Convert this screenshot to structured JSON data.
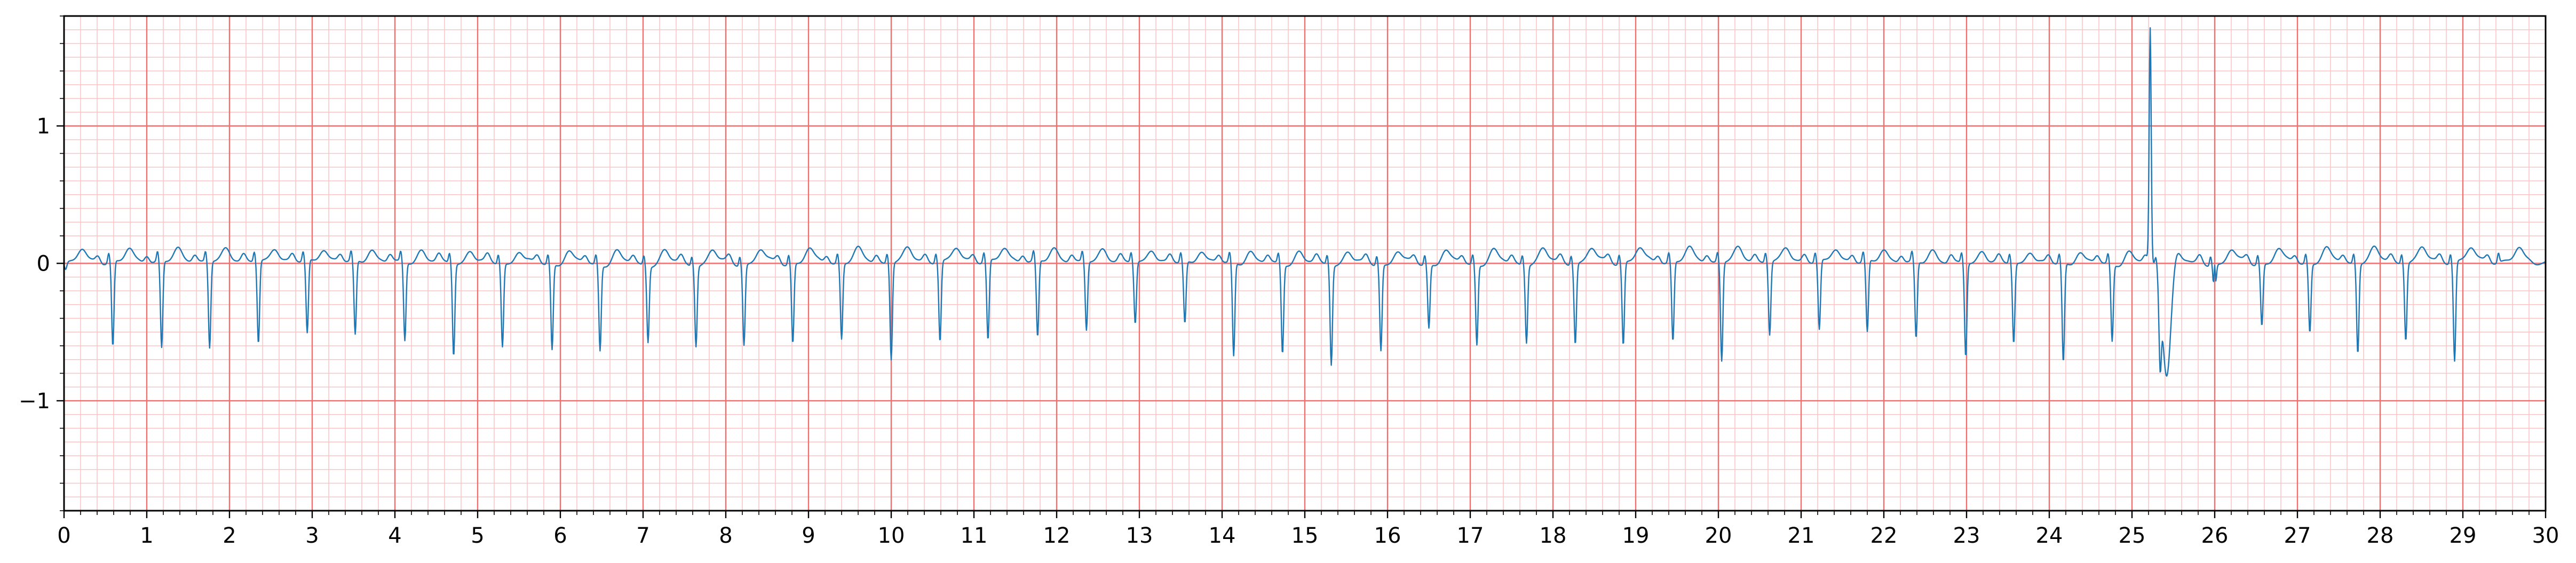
{
  "chart_data": {
    "type": "line",
    "title": "",
    "xlabel": "",
    "ylabel": "",
    "xlim": [
      0,
      30
    ],
    "ylim": [
      -1.8,
      1.8
    ],
    "x_ticks": [
      {
        "value": 0,
        "label": "0"
      },
      {
        "value": 1,
        "label": "1"
      },
      {
        "value": 2,
        "label": "2"
      },
      {
        "value": 3,
        "label": "3"
      },
      {
        "value": 4,
        "label": "4"
      },
      {
        "value": 5,
        "label": "5"
      },
      {
        "value": 6,
        "label": "6"
      },
      {
        "value": 7,
        "label": "7"
      },
      {
        "value": 8,
        "label": "8"
      },
      {
        "value": 9,
        "label": "9"
      },
      {
        "value": 10,
        "label": "10"
      },
      {
        "value": 11,
        "label": "11"
      },
      {
        "value": 12,
        "label": "12"
      },
      {
        "value": 13,
        "label": "13"
      },
      {
        "value": 14,
        "label": "14"
      },
      {
        "value": 15,
        "label": "15"
      },
      {
        "value": 16,
        "label": "16"
      },
      {
        "value": 17,
        "label": "17"
      },
      {
        "value": 18,
        "label": "18"
      },
      {
        "value": 19,
        "label": "19"
      },
      {
        "value": 20,
        "label": "20"
      },
      {
        "value": 21,
        "label": "21"
      },
      {
        "value": 22,
        "label": "22"
      },
      {
        "value": 23,
        "label": "23"
      },
      {
        "value": 24,
        "label": "24"
      },
      {
        "value": 25,
        "label": "25"
      },
      {
        "value": 26,
        "label": "26"
      },
      {
        "value": 27,
        "label": "27"
      },
      {
        "value": 28,
        "label": "28"
      },
      {
        "value": 29,
        "label": "29"
      },
      {
        "value": 30,
        "label": "30"
      }
    ],
    "y_ticks": [
      {
        "value": -1,
        "label": "−1"
      },
      {
        "value": 0,
        "label": "0"
      },
      {
        "value": 1,
        "label": "1"
      }
    ],
    "grid": {
      "major": true,
      "minor": true,
      "major_x_step": 1,
      "minor_x_step": 0.2,
      "major_y_step": 1,
      "minor_y_step": 0.1
    },
    "colors": {
      "line": "#1f77b4",
      "major_grid": "#f07070",
      "minor_grid": "#fbc4c4",
      "axes": "#000000"
    },
    "series": [
      {
        "values": [],
        "beats": {
          "times": [
            0.0,
            0.57,
            1.16,
            1.74,
            2.33,
            2.92,
            3.5,
            4.1,
            4.69,
            5.28,
            5.88,
            6.46,
            7.04,
            7.62,
            8.2,
            8.79,
            9.38,
            9.98,
            10.57,
            11.15,
            11.75,
            12.34,
            12.93,
            13.53,
            14.12,
            14.71,
            15.3,
            15.9,
            16.48,
            17.06,
            17.66,
            18.25,
            18.83,
            19.43,
            20.02,
            20.6,
            21.2,
            21.78,
            22.37,
            22.97,
            23.55,
            24.15,
            24.74,
            25.32,
            25.98,
            26.55,
            27.13,
            27.71,
            28.29,
            28.88,
            29.46
          ],
          "s_depth": [
            -0.05,
            -0.62,
            -0.63,
            -0.63,
            -0.6,
            -0.53,
            -0.54,
            -0.57,
            -0.67,
            -0.6,
            -0.62,
            -0.62,
            -0.55,
            -0.58,
            -0.58,
            -0.58,
            -0.55,
            -0.7,
            -0.58,
            -0.58,
            -0.56,
            -0.5,
            -0.45,
            -0.45,
            -0.68,
            -0.65,
            -0.72,
            -0.62,
            -0.46,
            -0.58,
            -0.56,
            -0.58,
            -0.6,
            -0.58,
            -0.72,
            -0.53,
            -0.5,
            -0.52,
            -0.56,
            -0.68,
            -0.58,
            -0.72,
            -0.56,
            -0.55,
            -0.3,
            -0.45,
            -0.5,
            -0.65,
            -0.56,
            -0.72,
            0.0
          ],
          "spike": {
            "x": 25.22,
            "peak": 1.8,
            "trough": -0.8
          }
        }
      }
    ]
  }
}
